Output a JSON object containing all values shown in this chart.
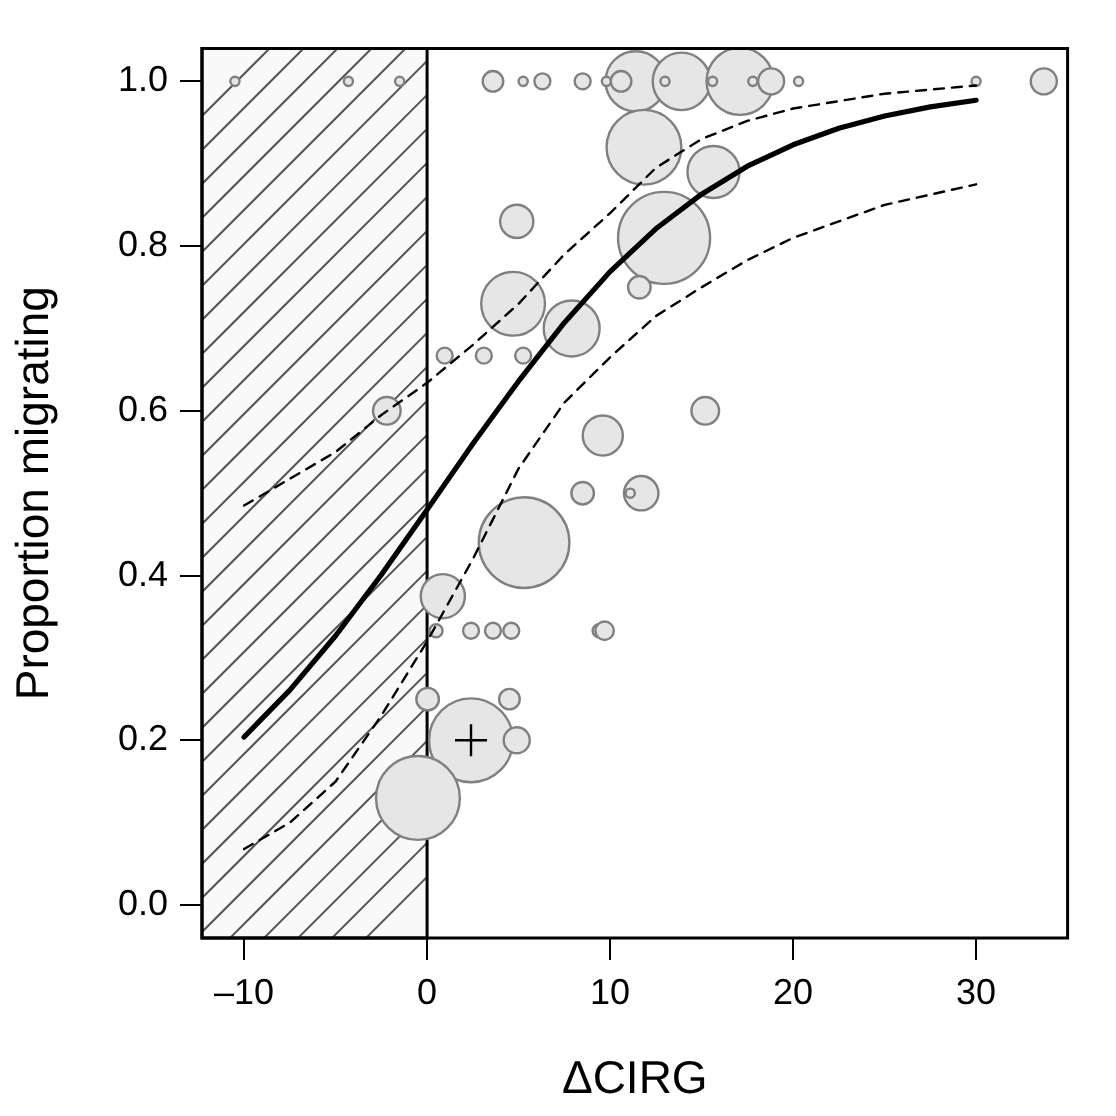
{
  "chart_data": {
    "type": "bubble",
    "xlabel": "ΔCIRG",
    "ylabel": "Proportion migrating",
    "xlim": [
      -12.3,
      35
    ],
    "xticks": [
      {
        "value": -10,
        "label": "–10"
      },
      0,
      10,
      20,
      30
    ],
    "ylim": [
      -0.04,
      1.04
    ],
    "yticks": [
      {
        "value": 0,
        "label": "0.0"
      },
      0.2,
      0.4,
      0.6,
      0.8,
      {
        "value": 1,
        "label": "1.0"
      }
    ],
    "grid": false,
    "legend": false,
    "bands": [
      {
        "axis": "x",
        "from": -12.3,
        "to": 0,
        "color": "#ededed"
      }
    ],
    "series": [
      {
        "type": "bubble",
        "color": "#e6e6e6",
        "x": [
          11.4,
          13.9,
          17.1,
          -10.5,
          -4.3,
          -1.5,
          3.6,
          5.25,
          6.3,
          8.5,
          9.8,
          10.6,
          13.0,
          15.6,
          17.8,
          18.8,
          20.3,
          30.0,
          33.7,
          11.85,
          15.65,
          12.95,
          4.9,
          11.6,
          4.7,
          7.9,
          0.96,
          3.1,
          5.25,
          -2.2,
          15.2,
          9.6,
          8.5,
          11.7,
          11.1,
          0.86,
          5.3,
          0.49,
          2.4,
          3.6,
          4.6,
          9.4,
          9.7,
          0.03,
          4.5,
          2.4,
          4.9,
          -0.5
        ],
        "values": [
          1,
          1,
          1,
          1,
          1,
          1,
          1,
          1,
          1,
          1,
          1,
          1,
          1,
          1,
          1,
          1,
          1,
          1,
          1,
          0.92,
          0.89,
          0.81,
          0.83,
          0.75,
          0.73,
          0.7,
          0.667,
          0.667,
          0.667,
          0.6,
          0.6,
          0.57,
          0.5,
          0.5,
          0.5,
          0.375,
          0.44,
          0.333,
          0.333,
          0.333,
          0.333,
          0.333,
          0.333,
          0.25,
          0.25,
          0.2,
          0.2,
          0.13
        ],
        "sizes": [
          0.43,
          0.39,
          0.53,
          0.01,
          0.01,
          0.01,
          0.05,
          0.01,
          0.03,
          0.03,
          0.01,
          0.05,
          0.01,
          0.01,
          0.01,
          0.08,
          0.01,
          0.01,
          0.08,
          0.66,
          0.32,
          1,
          0.13,
          0.06,
          0.48,
          0.37,
          0.03,
          0.03,
          0.03,
          0.09,
          0.09,
          0.19,
          0.06,
          0.14,
          0.01,
          0.23,
          0.97,
          0.02,
          0.03,
          0.03,
          0.03,
          0.02,
          0.04,
          0.06,
          0.05,
          0.83,
          0.08,
          0.83
        ]
      },
      {
        "type": "line",
        "color": "#000000",
        "line_style": "solid",
        "x": [
          -10,
          -7.5,
          -5,
          -2.5,
          0,
          2.5,
          5,
          7.5,
          10,
          12.5,
          15,
          17.5,
          20,
          22.5,
          25,
          27.5,
          30
        ],
        "values": [
          0.204,
          0.261,
          0.327,
          0.401,
          0.48,
          0.56,
          0.636,
          0.707,
          0.769,
          0.821,
          0.863,
          0.897,
          0.923,
          0.943,
          0.958,
          0.969,
          0.977
        ]
      },
      {
        "type": "line",
        "color": "#000000",
        "line_style": "dashed",
        "x": [
          -10,
          -5,
          -2.5,
          0,
          2.5,
          5,
          7.5,
          10,
          12.5,
          15,
          17.5,
          20,
          25,
          30
        ],
        "values": [
          0.485,
          0.55,
          0.595,
          0.634,
          0.68,
          0.73,
          0.79,
          0.84,
          0.895,
          0.93,
          0.952,
          0.967,
          0.985,
          0.995
        ]
      },
      {
        "type": "line",
        "color": "#000000",
        "line_style": "dashed",
        "x": [
          -10,
          -7.5,
          -5,
          -2.5,
          0,
          2.5,
          5,
          7.5,
          10,
          12.5,
          15,
          17.5,
          20,
          25,
          30
        ],
        "values": [
          0.068,
          0.1,
          0.15,
          0.23,
          0.32,
          0.42,
          0.53,
          0.61,
          0.665,
          0.715,
          0.75,
          0.783,
          0.81,
          0.85,
          0.875
        ]
      },
      {
        "type": "scatter",
        "marker": "cross",
        "color": "#000000",
        "x": [
          2.4
        ],
        "values": [
          0.2
        ]
      }
    ]
  }
}
